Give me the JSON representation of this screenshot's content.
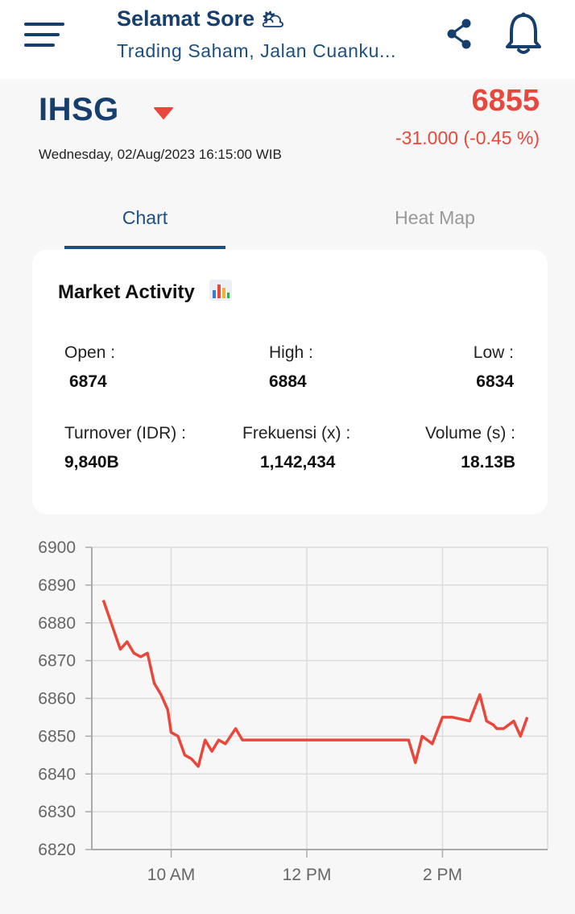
{
  "header": {
    "greeting": "Selamat Sore",
    "greeting_emoji": "🌥",
    "subtitle": "Trading Saham, Jalan Cuanku...",
    "icons": [
      "menu-icon",
      "share-icon",
      "bell-icon"
    ]
  },
  "summary": {
    "ticker": "IHSG",
    "datetime": "Wednesday, 02/Aug/2023 16:15:00 WIB",
    "price": "6855",
    "change": "-31.000 (-0.45 %)",
    "trend_color": "#e8483c"
  },
  "tabs": [
    {
      "label": "Chart",
      "active": true
    },
    {
      "label": "Heat Map",
      "active": false
    }
  ],
  "market_activity": {
    "title": "Market Activity",
    "stats": [
      {
        "label": "Open :",
        "value": "6874"
      },
      {
        "label": "High :",
        "value": "6884"
      },
      {
        "label": "Low :",
        "value": "6834"
      },
      {
        "label": "Turnover (IDR) :",
        "value": "9,840B"
      },
      {
        "label": "Frekuensi (x) :",
        "value": "1,142,434"
      },
      {
        "label": "Volume (s) :",
        "value": "18.13B"
      }
    ]
  },
  "chart_data": {
    "type": "line",
    "series": [
      {
        "color": "#e8483c",
        "x": [
          9.0,
          9.25,
          9.35,
          9.45,
          9.55,
          9.65,
          9.75,
          9.85,
          9.95,
          10.0,
          10.1,
          10.2,
          10.3,
          10.4,
          10.5,
          10.6,
          10.7,
          10.8,
          10.95,
          11.05,
          11.2,
          11.3,
          11.45,
          11.5,
          11.6,
          11.7,
          11.85,
          12.0,
          12.1,
          12.5,
          13.0,
          13.5,
          13.6,
          13.7,
          13.85,
          14.0,
          14.15,
          14.4,
          14.55,
          14.65,
          14.75,
          14.8,
          14.9,
          15.05,
          15.15,
          15.25
        ],
        "y": [
          6886,
          6873,
          6875,
          6872,
          6871,
          6872,
          6864,
          6861,
          6857,
          6851,
          6850,
          6845,
          6844,
          6842,
          6849,
          6846,
          6849,
          6848,
          6852,
          6849,
          6849,
          6849,
          6849,
          6849,
          6849,
          6849,
          6849,
          6849,
          6849,
          6849,
          6849,
          6849,
          6843,
          6850,
          6848,
          6855,
          6855,
          6854,
          6861,
          6854,
          6853,
          6852,
          6852,
          6854,
          6850,
          6855
        ]
      }
    ],
    "x_ticks": [
      {
        "value": 10,
        "label": "10 AM"
      },
      {
        "value": 12,
        "label": "12 PM"
      },
      {
        "value": 14,
        "label": "2 PM"
      }
    ],
    "y_ticks": [
      6820,
      6830,
      6840,
      6850,
      6860,
      6870,
      6880,
      6890,
      6900
    ],
    "xlim": [
      8.83,
      15.55
    ],
    "ylim": [
      6820,
      6900
    ],
    "grid": true
  }
}
